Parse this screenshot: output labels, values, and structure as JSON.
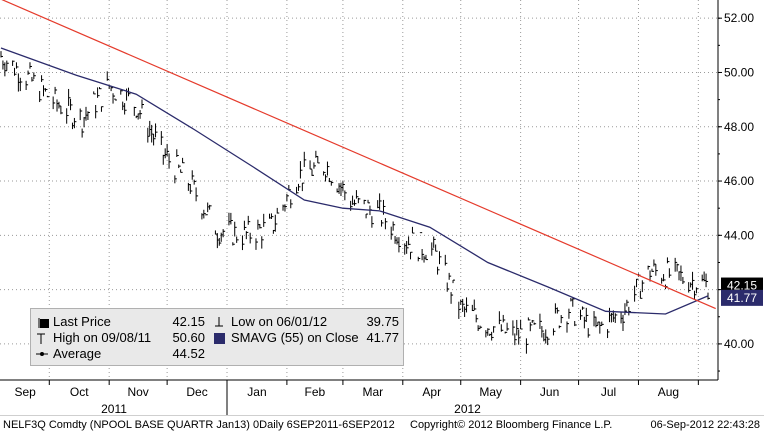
{
  "chart_data": {
    "type": "line",
    "x_range": [
      "2011-09-06",
      "2012-09-06"
    ],
    "ylim": [
      38.67,
      52.67
    ],
    "y_ticks": [
      "52.00",
      "50.00",
      "48.00",
      "46.00",
      "44.00",
      "42.00",
      "40.00"
    ],
    "x_month_labels": [
      "Sep",
      "Oct",
      "Nov",
      "Dec",
      "Jan",
      "Feb",
      "Mar",
      "Apr",
      "May",
      "Jun",
      "Jul",
      "Aug"
    ],
    "x_year_labels": [
      "2011",
      "2012"
    ],
    "grid": true,
    "last_price_label": "42.15",
    "smavg_label": "41.77",
    "series": [
      {
        "name": "Last Price",
        "color": "#000000",
        "x": [
          "2011-09-06",
          "2011-09-20",
          "2011-10-04",
          "2011-10-18",
          "2011-11-01",
          "2011-11-15",
          "2011-11-29",
          "2011-12-13",
          "2011-12-27",
          "2012-01-10",
          "2012-01-24",
          "2012-02-07",
          "2012-02-21",
          "2012-03-06",
          "2012-03-20",
          "2012-04-03",
          "2012-04-17",
          "2012-05-01",
          "2012-05-15",
          "2012-05-29",
          "2012-06-12",
          "2012-06-26",
          "2012-07-10",
          "2012-07-24",
          "2012-08-07",
          "2012-08-21",
          "2012-09-06"
        ],
        "values": [
          50.6,
          49.8,
          48.9,
          48.3,
          49.5,
          48.8,
          47.0,
          45.9,
          44.2,
          44.0,
          44.3,
          46.2,
          46.6,
          45.2,
          44.8,
          43.8,
          43.4,
          41.3,
          40.7,
          40.3,
          40.5,
          41.3,
          40.5,
          41.2,
          42.7,
          42.5,
          42.15
        ]
      },
      {
        "name": "SMAVG (55) on Close",
        "color": "#2b2b6b",
        "x": [
          "2011-09-06",
          "2011-10-15",
          "2011-11-15",
          "2011-12-15",
          "2012-01-15",
          "2012-02-10",
          "2012-03-01",
          "2012-03-20",
          "2012-04-15",
          "2012-05-15",
          "2012-06-15",
          "2012-07-15",
          "2012-08-15",
          "2012-09-06"
        ],
        "values": [
          50.9,
          49.9,
          49.2,
          47.9,
          46.5,
          45.3,
          45.0,
          44.9,
          44.3,
          43.0,
          42.1,
          41.2,
          41.1,
          41.77
        ]
      },
      {
        "name": "Trend line",
        "color": "#e53b2c",
        "x": [
          "2011-09-06",
          "2012-09-10"
        ],
        "values": [
          52.7,
          41.3
        ]
      }
    ],
    "legend": [
      {
        "label": "Last Price",
        "value": "42.15",
        "col": 0
      },
      {
        "label": "High on 09/08/11",
        "value": "50.60",
        "col": 0
      },
      {
        "label": "Average",
        "value": "44.52",
        "col": 0
      },
      {
        "label": "Low on 06/01/12",
        "value": "39.75",
        "col": 1
      },
      {
        "label": "SMAVG (55) on Close",
        "value": "41.77",
        "col": 1
      }
    ]
  },
  "footer": {
    "ticker": "NELF3Q Comdty (NPOOL BASE QUARTR Jan13) 0Daily 6SEP2011-6SEP2012",
    "copyright": "Copyright© 2012 Bloomberg Finance L.P.",
    "timestamp": "06-Sep-2012 22:43:28"
  },
  "colors": {
    "price_bars": "#000000",
    "smavg": "#2b2b6b",
    "trend": "#e53b2c",
    "label_bg": "#000000",
    "label_text": "#ffffff",
    "legend_bg": "#e9e9e9"
  }
}
